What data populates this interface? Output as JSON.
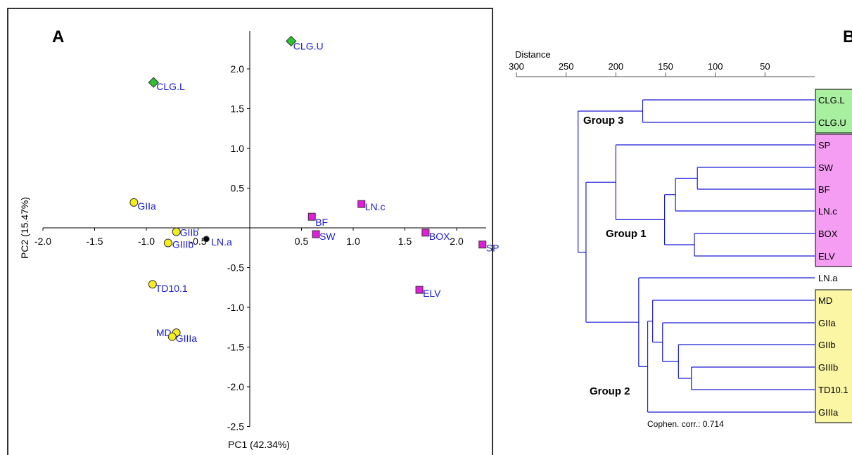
{
  "colors": {
    "label_blue": "#1a1ad6",
    "tree_blue": "#1a1ad6",
    "group1_fill": "#f59df2",
    "group2_fill": "#fbf6a4",
    "group3_fill": "#a8f0a0",
    "marker_yellow": "#f4ef1c",
    "marker_magenta": "#e21ed8",
    "marker_green": "#2ec02e",
    "marker_black": "#000000"
  },
  "chart_data": [
    {
      "type": "scatter",
      "panel_label": "A",
      "xlabel": "PC1 (42.34%)",
      "ylabel": "PC2 (15.47%)",
      "xlim": [
        -2.0,
        2.4
      ],
      "ylim": [
        -2.65,
        2.45
      ],
      "x_ticks": [
        "-2.0",
        "-1.5",
        "-1.0",
        "-0.5",
        "0.5",
        "1.0",
        "1.5",
        "2.0"
      ],
      "x_tick_values": [
        -2.0,
        -1.5,
        -1.0,
        -0.5,
        0.5,
        1.0,
        1.5,
        2.0
      ],
      "y_ticks": [
        "2.0",
        "1.5",
        "1.0",
        "0.5",
        "-0.5",
        "-1.0",
        "-1.5",
        "-2.0",
        "-2.5"
      ],
      "y_tick_values": [
        2.0,
        1.5,
        1.0,
        0.5,
        -0.5,
        -1.0,
        -1.5,
        -2.0,
        -2.5
      ],
      "grid": false,
      "points": [
        {
          "label": "CLG.U",
          "x": 0.4,
          "y": 2.35,
          "marker": "diamond",
          "color_key": "marker_green"
        },
        {
          "label": "CLG.L",
          "x": -0.93,
          "y": 1.83,
          "marker": "diamond",
          "color_key": "marker_green"
        },
        {
          "label": "GIIa",
          "x": -1.12,
          "y": 0.32,
          "marker": "circle",
          "color_key": "marker_yellow"
        },
        {
          "label": "GIIb",
          "x": -0.71,
          "y": -0.05,
          "marker": "circle",
          "color_key": "marker_yellow"
        },
        {
          "label": "GIIIb",
          "x": -0.79,
          "y": -0.19,
          "marker": "circle",
          "color_key": "marker_yellow"
        },
        {
          "label": "LN.a",
          "x": -0.42,
          "y": -0.14,
          "marker": "circle",
          "color_key": "marker_black"
        },
        {
          "label": "TD10.1",
          "x": -0.94,
          "y": -0.71,
          "marker": "circle",
          "color_key": "marker_yellow"
        },
        {
          "label": "MD",
          "x": -0.71,
          "y": -1.32,
          "marker": "circle",
          "color_key": "marker_yellow"
        },
        {
          "label": "GIIIa",
          "x": -0.75,
          "y": -1.37,
          "marker": "circle",
          "color_key": "marker_yellow"
        },
        {
          "label": "BF",
          "x": 0.6,
          "y": 0.14,
          "marker": "square",
          "color_key": "marker_magenta"
        },
        {
          "label": "SW",
          "x": 0.64,
          "y": -0.08,
          "marker": "square",
          "color_key": "marker_magenta"
        },
        {
          "label": "LN.c",
          "x": 1.08,
          "y": 0.3,
          "marker": "square",
          "color_key": "marker_magenta"
        },
        {
          "label": "BOX",
          "x": 1.7,
          "y": -0.06,
          "marker": "square",
          "color_key": "marker_magenta"
        },
        {
          "label": "ELV",
          "x": 1.64,
          "y": -0.78,
          "marker": "square",
          "color_key": "marker_magenta"
        },
        {
          "label": "SP",
          "x": 2.25,
          "y": -0.21,
          "marker": "square",
          "color_key": "marker_magenta"
        }
      ]
    },
    {
      "type": "dendrogram",
      "panel_label": "B",
      "axis_title": "Distance",
      "xlim": [
        300,
        0
      ],
      "x_ticks": [
        "300",
        "250",
        "200",
        "150",
        "100",
        "50"
      ],
      "x_tick_values": [
        300,
        250,
        200,
        150,
        100,
        50
      ],
      "leaves": [
        "CLG.L",
        "CLG.U",
        "SP",
        "SW",
        "BF",
        "LN.c",
        "BOX",
        "ELV",
        "LN.a",
        "MD",
        "GIIa",
        "GIIb",
        "GIIIb",
        "TD10.1",
        "GIIIa"
      ],
      "merges": [
        {
          "a": "SW",
          "b": "BF",
          "height": 118
        },
        {
          "a": "BOX",
          "b": "ELV",
          "height": 121
        },
        {
          "a": "{SW,BF}",
          "b": "LN.c",
          "height": 140
        },
        {
          "a": "{SW,BF,LN.c}",
          "b": "{BOX,ELV}",
          "height": 151
        },
        {
          "a": "SP",
          "b": "{SW,BF,LN.c,BOX,ELV}",
          "height": 200
        },
        {
          "a": "GIIIb",
          "b": "TD10.1",
          "height": 124
        },
        {
          "a": "GIIb",
          "b": "{GIIIb,TD10.1}",
          "height": 137
        },
        {
          "a": "GIIa",
          "b": "{GIIb,GIIIb,TD10.1}",
          "height": 153
        },
        {
          "a": "MD",
          "b": "{GIIa,GIIb,GIIIb,TD10.1}",
          "height": 163
        },
        {
          "a": "{MD..TD10.1}",
          "b": "GIIIa",
          "height": 168
        },
        {
          "a": "LN.a",
          "b": "{MD..GIIIa}",
          "height": 177
        },
        {
          "a": "CLG.L",
          "b": "CLG.U",
          "height": 173
        },
        {
          "a": "group1",
          "b": "group2",
          "height": 230
        },
        {
          "a": "group3",
          "b": "{group1,group2}",
          "height": 238
        }
      ],
      "groups": [
        {
          "name": "Group 3",
          "leaves": [
            "CLG.L",
            "CLG.U"
          ],
          "color_key": "group3_fill"
        },
        {
          "name": "Group 1",
          "leaves": [
            "SP",
            "SW",
            "BF",
            "LN.c",
            "BOX",
            "ELV"
          ],
          "color_key": "group1_fill"
        },
        {
          "name": "Group 2",
          "leaves": [
            "MD",
            "GIIa",
            "GIIb",
            "GIIIb",
            "TD10.1",
            "GIIIa"
          ],
          "color_key": "group2_fill"
        }
      ],
      "annotation": "Cophen. corr.: 0.714"
    }
  ]
}
